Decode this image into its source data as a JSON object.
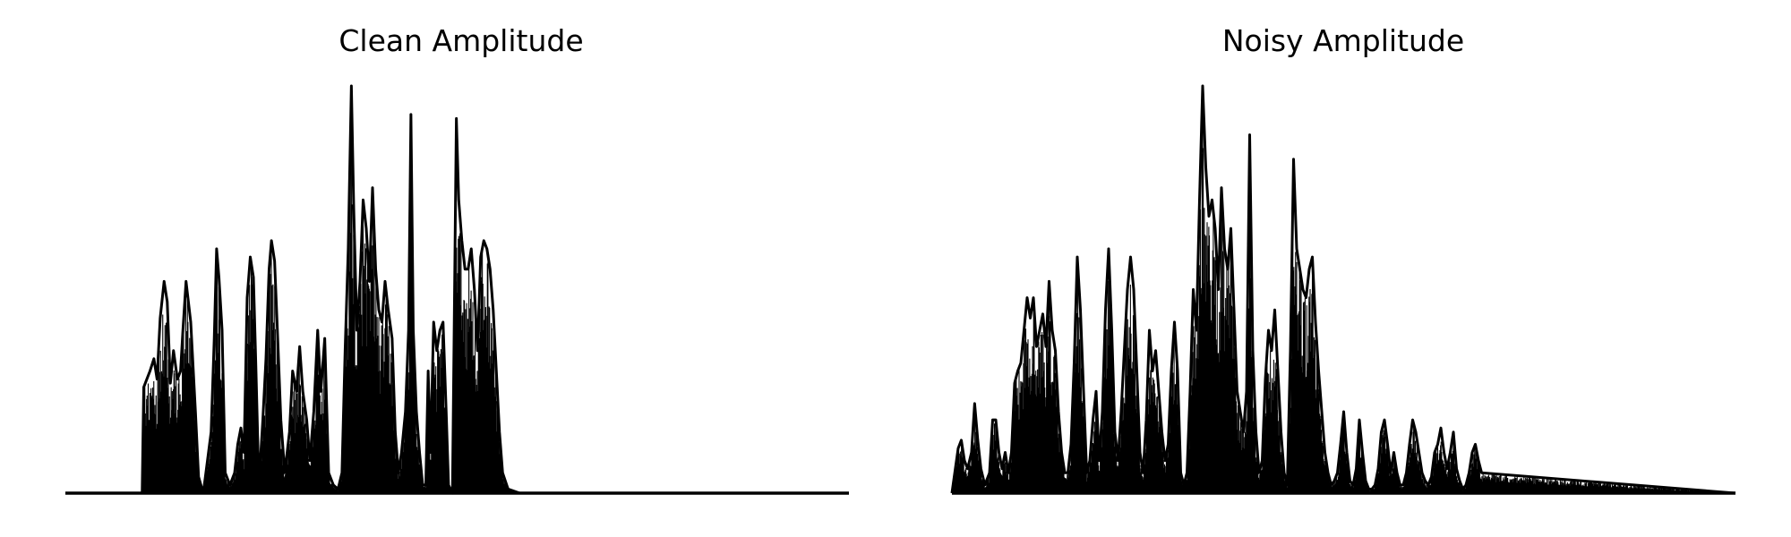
{
  "chart_data": [
    {
      "type": "area",
      "title": "Clean Amplitude",
      "axes_visible": false,
      "color": "#000000",
      "baseline": 0,
      "ylim": [
        0,
        1
      ],
      "envelope": [
        [
          0.0,
          0.0
        ],
        [
          0.098,
          0.0
        ],
        [
          0.1,
          0.26
        ],
        [
          0.104,
          0.28
        ],
        [
          0.108,
          0.3
        ],
        [
          0.113,
          0.33
        ],
        [
          0.117,
          0.28
        ],
        [
          0.121,
          0.43
        ],
        [
          0.126,
          0.52
        ],
        [
          0.13,
          0.47
        ],
        [
          0.134,
          0.27
        ],
        [
          0.138,
          0.35
        ],
        [
          0.143,
          0.28
        ],
        [
          0.147,
          0.3
        ],
        [
          0.15,
          0.4
        ],
        [
          0.154,
          0.52
        ],
        [
          0.16,
          0.42
        ],
        [
          0.166,
          0.2
        ],
        [
          0.17,
          0.04
        ],
        [
          0.176,
          0.0
        ],
        [
          0.186,
          0.15
        ],
        [
          0.19,
          0.38
        ],
        [
          0.193,
          0.6
        ],
        [
          0.196,
          0.53
        ],
        [
          0.2,
          0.4
        ],
        [
          0.204,
          0.05
        ],
        [
          0.21,
          0.02
        ],
        [
          0.216,
          0.05
        ],
        [
          0.22,
          0.12
        ],
        [
          0.224,
          0.16
        ],
        [
          0.228,
          0.1
        ],
        [
          0.232,
          0.48
        ],
        [
          0.236,
          0.58
        ],
        [
          0.24,
          0.53
        ],
        [
          0.243,
          0.32
        ],
        [
          0.247,
          0.02
        ],
        [
          0.252,
          0.18
        ],
        [
          0.256,
          0.33
        ],
        [
          0.26,
          0.55
        ],
        [
          0.263,
          0.62
        ],
        [
          0.267,
          0.57
        ],
        [
          0.271,
          0.38
        ],
        [
          0.275,
          0.18
        ],
        [
          0.28,
          0.05
        ],
        [
          0.286,
          0.15
        ],
        [
          0.29,
          0.3
        ],
        [
          0.295,
          0.25
        ],
        [
          0.299,
          0.36
        ],
        [
          0.303,
          0.25
        ],
        [
          0.308,
          0.18
        ],
        [
          0.312,
          0.08
        ],
        [
          0.317,
          0.2
        ],
        [
          0.322,
          0.4
        ],
        [
          0.326,
          0.25
        ],
        [
          0.331,
          0.38
        ],
        [
          0.336,
          0.05
        ],
        [
          0.342,
          0.02
        ],
        [
          0.348,
          0.01
        ],
        [
          0.353,
          0.05
        ],
        [
          0.357,
          0.35
        ],
        [
          0.361,
          0.6
        ],
        [
          0.365,
          1.0
        ],
        [
          0.368,
          0.7
        ],
        [
          0.372,
          0.4
        ],
        [
          0.376,
          0.52
        ],
        [
          0.38,
          0.72
        ],
        [
          0.384,
          0.65
        ],
        [
          0.388,
          0.52
        ],
        [
          0.392,
          0.75
        ],
        [
          0.396,
          0.55
        ],
        [
          0.4,
          0.45
        ],
        [
          0.404,
          0.42
        ],
        [
          0.408,
          0.52
        ],
        [
          0.412,
          0.45
        ],
        [
          0.417,
          0.38
        ],
        [
          0.421,
          0.15
        ],
        [
          0.425,
          0.05
        ],
        [
          0.429,
          0.1
        ],
        [
          0.434,
          0.2
        ],
        [
          0.438,
          0.4
        ],
        [
          0.441,
          0.93
        ],
        [
          0.444,
          0.4
        ],
        [
          0.448,
          0.2
        ],
        [
          0.452,
          0.1
        ],
        [
          0.456,
          0.02
        ],
        [
          0.46,
          0.02
        ],
        [
          0.463,
          0.3
        ],
        [
          0.466,
          0.1
        ],
        [
          0.47,
          0.42
        ],
        [
          0.474,
          0.35
        ],
        [
          0.478,
          0.4
        ],
        [
          0.482,
          0.42
        ],
        [
          0.486,
          0.2
        ],
        [
          0.489,
          0.02
        ],
        [
          0.494,
          0.0
        ],
        [
          0.499,
          0.92
        ],
        [
          0.502,
          0.72
        ],
        [
          0.506,
          0.62
        ],
        [
          0.51,
          0.55
        ],
        [
          0.514,
          0.55
        ],
        [
          0.518,
          0.6
        ],
        [
          0.522,
          0.5
        ],
        [
          0.526,
          0.35
        ],
        [
          0.53,
          0.58
        ],
        [
          0.534,
          0.62
        ],
        [
          0.538,
          0.6
        ],
        [
          0.542,
          0.55
        ],
        [
          0.546,
          0.45
        ],
        [
          0.55,
          0.3
        ],
        [
          0.554,
          0.15
        ],
        [
          0.558,
          0.05
        ],
        [
          0.565,
          0.01
        ],
        [
          0.58,
          0.0
        ],
        [
          1.0,
          0.0
        ]
      ]
    },
    {
      "type": "area",
      "title": "Noisy Amplitude",
      "axes_visible": false,
      "color": "#000000",
      "baseline": 0,
      "ylim": [
        0,
        1
      ],
      "envelope": [
        [
          0.0,
          0.0
        ],
        [
          0.008,
          0.11
        ],
        [
          0.012,
          0.13
        ],
        [
          0.016,
          0.08
        ],
        [
          0.02,
          0.06
        ],
        [
          0.025,
          0.1
        ],
        [
          0.029,
          0.22
        ],
        [
          0.033,
          0.13
        ],
        [
          0.037,
          0.06
        ],
        [
          0.042,
          0.02
        ],
        [
          0.048,
          0.05
        ],
        [
          0.052,
          0.18
        ],
        [
          0.056,
          0.18
        ],
        [
          0.06,
          0.1
        ],
        [
          0.064,
          0.06
        ],
        [
          0.068,
          0.1
        ],
        [
          0.072,
          0.05
        ],
        [
          0.076,
          0.1
        ],
        [
          0.08,
          0.27
        ],
        [
          0.084,
          0.3
        ],
        [
          0.088,
          0.32
        ],
        [
          0.092,
          0.4
        ],
        [
          0.096,
          0.48
        ],
        [
          0.1,
          0.43
        ],
        [
          0.104,
          0.48
        ],
        [
          0.108,
          0.36
        ],
        [
          0.112,
          0.4
        ],
        [
          0.116,
          0.44
        ],
        [
          0.12,
          0.36
        ],
        [
          0.124,
          0.52
        ],
        [
          0.128,
          0.4
        ],
        [
          0.132,
          0.35
        ],
        [
          0.136,
          0.2
        ],
        [
          0.14,
          0.1
        ],
        [
          0.144,
          0.05
        ],
        [
          0.148,
          0.05
        ],
        [
          0.152,
          0.12
        ],
        [
          0.156,
          0.32
        ],
        [
          0.16,
          0.58
        ],
        [
          0.164,
          0.45
        ],
        [
          0.168,
          0.25
        ],
        [
          0.172,
          0.05
        ],
        [
          0.176,
          0.08
        ],
        [
          0.18,
          0.18
        ],
        [
          0.184,
          0.25
        ],
        [
          0.188,
          0.08
        ],
        [
          0.192,
          0.2
        ],
        [
          0.196,
          0.45
        ],
        [
          0.2,
          0.6
        ],
        [
          0.204,
          0.4
        ],
        [
          0.208,
          0.15
        ],
        [
          0.212,
          0.08
        ],
        [
          0.216,
          0.2
        ],
        [
          0.22,
          0.35
        ],
        [
          0.224,
          0.5
        ],
        [
          0.228,
          0.58
        ],
        [
          0.232,
          0.5
        ],
        [
          0.236,
          0.3
        ],
        [
          0.24,
          0.1
        ],
        [
          0.244,
          0.05
        ],
        [
          0.248,
          0.18
        ],
        [
          0.252,
          0.4
        ],
        [
          0.256,
          0.3
        ],
        [
          0.26,
          0.35
        ],
        [
          0.264,
          0.25
        ],
        [
          0.268,
          0.15
        ],
        [
          0.272,
          0.08
        ],
        [
          0.276,
          0.12
        ],
        [
          0.28,
          0.3
        ],
        [
          0.284,
          0.42
        ],
        [
          0.288,
          0.3
        ],
        [
          0.292,
          0.05
        ],
        [
          0.296,
          0.02
        ],
        [
          0.3,
          0.05
        ],
        [
          0.304,
          0.25
        ],
        [
          0.308,
          0.5
        ],
        [
          0.312,
          0.4
        ],
        [
          0.316,
          0.72
        ],
        [
          0.32,
          1.0
        ],
        [
          0.324,
          0.8
        ],
        [
          0.328,
          0.68
        ],
        [
          0.332,
          0.72
        ],
        [
          0.336,
          0.65
        ],
        [
          0.34,
          0.5
        ],
        [
          0.344,
          0.75
        ],
        [
          0.348,
          0.6
        ],
        [
          0.352,
          0.55
        ],
        [
          0.356,
          0.65
        ],
        [
          0.36,
          0.45
        ],
        [
          0.364,
          0.25
        ],
        [
          0.368,
          0.2
        ],
        [
          0.372,
          0.15
        ],
        [
          0.376,
          0.25
        ],
        [
          0.38,
          0.88
        ],
        [
          0.384,
          0.35
        ],
        [
          0.388,
          0.15
        ],
        [
          0.392,
          0.05
        ],
        [
          0.396,
          0.08
        ],
        [
          0.4,
          0.28
        ],
        [
          0.404,
          0.4
        ],
        [
          0.408,
          0.35
        ],
        [
          0.412,
          0.45
        ],
        [
          0.416,
          0.3
        ],
        [
          0.42,
          0.15
        ],
        [
          0.424,
          0.05
        ],
        [
          0.428,
          0.02
        ],
        [
          0.432,
          0.35
        ],
        [
          0.436,
          0.82
        ],
        [
          0.44,
          0.6
        ],
        [
          0.444,
          0.55
        ],
        [
          0.448,
          0.5
        ],
        [
          0.452,
          0.48
        ],
        [
          0.456,
          0.55
        ],
        [
          0.46,
          0.58
        ],
        [
          0.464,
          0.42
        ],
        [
          0.468,
          0.3
        ],
        [
          0.472,
          0.2
        ],
        [
          0.476,
          0.1
        ],
        [
          0.48,
          0.05
        ],
        [
          0.484,
          0.02
        ],
        [
          0.488,
          0.03
        ],
        [
          0.492,
          0.05
        ],
        [
          0.496,
          0.12
        ],
        [
          0.5,
          0.2
        ],
        [
          0.504,
          0.1
        ],
        [
          0.508,
          0.03
        ],
        [
          0.512,
          0.02
        ],
        [
          0.516,
          0.06
        ],
        [
          0.52,
          0.18
        ],
        [
          0.524,
          0.1
        ],
        [
          0.528,
          0.03
        ],
        [
          0.532,
          0.01
        ],
        [
          0.536,
          0.01
        ],
        [
          0.54,
          0.02
        ],
        [
          0.544,
          0.06
        ],
        [
          0.548,
          0.15
        ],
        [
          0.552,
          0.18
        ],
        [
          0.556,
          0.12
        ],
        [
          0.56,
          0.05
        ],
        [
          0.564,
          0.1
        ],
        [
          0.568,
          0.05
        ],
        [
          0.572,
          0.02
        ],
        [
          0.576,
          0.02
        ],
        [
          0.58,
          0.05
        ],
        [
          0.584,
          0.12
        ],
        [
          0.588,
          0.18
        ],
        [
          0.592,
          0.15
        ],
        [
          0.596,
          0.1
        ],
        [
          0.6,
          0.05
        ],
        [
          0.604,
          0.03
        ],
        [
          0.608,
          0.02
        ],
        [
          0.612,
          0.04
        ],
        [
          0.616,
          0.1
        ],
        [
          0.62,
          0.12
        ],
        [
          0.624,
          0.16
        ],
        [
          0.628,
          0.1
        ],
        [
          0.632,
          0.06
        ],
        [
          0.636,
          0.1
        ],
        [
          0.64,
          0.15
        ],
        [
          0.644,
          0.06
        ],
        [
          0.648,
          0.03
        ],
        [
          0.652,
          0.01
        ],
        [
          0.656,
          0.02
        ],
        [
          0.66,
          0.05
        ],
        [
          0.664,
          0.1
        ],
        [
          0.668,
          0.12
        ],
        [
          0.672,
          0.08
        ],
        [
          0.676,
          0.05
        ],
        [
          1.0,
          0.0
        ]
      ]
    }
  ]
}
